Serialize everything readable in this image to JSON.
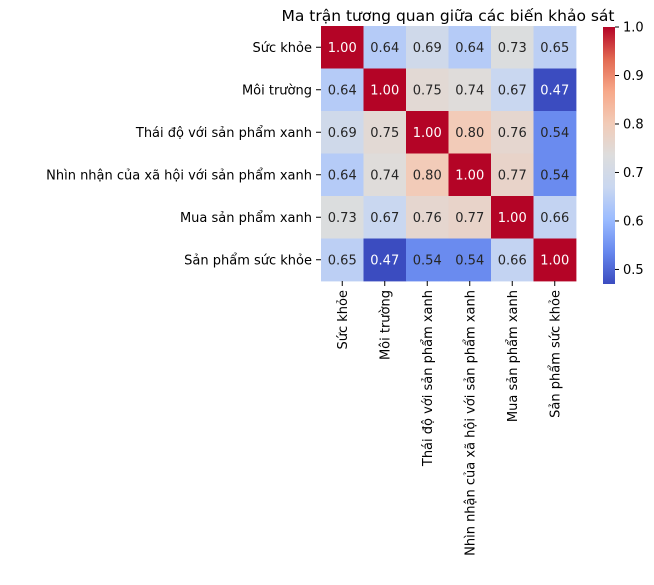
{
  "chart_data": {
    "type": "heatmap",
    "title": "Ma trận tương quan giữa các biến khảo sát",
    "rows": [
      "Sức khỏe",
      "Môi trường",
      "Thái độ với sản phẩm xanh",
      "Nhìn nhận của xã hội với sản phẩm xanh",
      "Mua sản phẩm xanh",
      "Sản phẩm sức khỏe"
    ],
    "cols": [
      "Sức khỏe",
      "Môi trường",
      "Thái độ với sản phẩm xanh",
      "Nhìn nhận của xã hội với sản phẩm xanh",
      "Mua sản phẩm xanh",
      "Sản phẩm sức khỏe"
    ],
    "values": [
      [
        1.0,
        0.64,
        0.69,
        0.64,
        0.73,
        0.65
      ],
      [
        0.64,
        1.0,
        0.75,
        0.74,
        0.67,
        0.47
      ],
      [
        0.69,
        0.75,
        1.0,
        0.8,
        0.76,
        0.54
      ],
      [
        0.64,
        0.74,
        0.8,
        1.0,
        0.77,
        0.54
      ],
      [
        0.73,
        0.67,
        0.76,
        0.77,
        1.0,
        0.66
      ],
      [
        0.65,
        0.47,
        0.54,
        0.54,
        0.66,
        1.0
      ]
    ],
    "annot_format": "0.00",
    "colormap": "coolwarm",
    "vmin": 0.47,
    "vmax": 1.0,
    "colorbar_ticks": [
      "0.5",
      "0.6",
      "0.7",
      "0.8",
      "0.9",
      "1.0"
    ],
    "colorbar_tick_values": [
      0.5,
      0.6,
      0.7,
      0.8,
      0.9,
      1.0
    ],
    "colormap_stops": [
      "#3b4cc0",
      "#6788ee",
      "#9abbff",
      "#c9d7f0",
      "#dddddd",
      "#f2cbb7",
      "#f7a889",
      "#e26952",
      "#b40426"
    ]
  }
}
